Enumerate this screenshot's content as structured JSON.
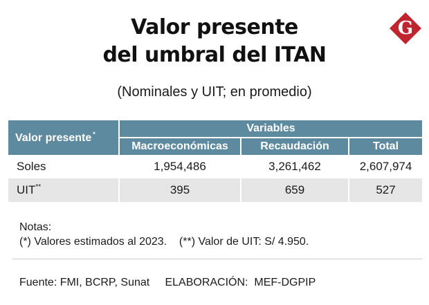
{
  "title": {
    "line1": "Valor presente",
    "line2": "del umbral del ITAN"
  },
  "logo": {
    "letter": "G",
    "color": "#c0242f",
    "icon": "gestion-logo-icon"
  },
  "subtitle": "(Nominales y UIT; en promedio)",
  "table": {
    "header_color": "#5e8aa0",
    "corner_label": "Valor presente",
    "corner_mark": "*",
    "group_label": "Variables",
    "columns": [
      "Macroeconómicas",
      "Recaudación",
      "Total"
    ],
    "rows": [
      {
        "label": "Soles",
        "mark": "",
        "values": [
          "1,954,486",
          "3,261,462",
          "2,607,974"
        ]
      },
      {
        "label": "UIT",
        "mark": "**",
        "values": [
          "395",
          "659",
          "527"
        ]
      }
    ]
  },
  "notes": {
    "heading": "Notas:",
    "note1": "(*) Valores estimados al 2023.",
    "note2": "(**) Valor de UIT: S/ 4.950."
  },
  "footer": {
    "source": "Fuente: FMI, BCRP, Sunat",
    "credit": "ELABORACIÓN:  MEF-DGPIP"
  }
}
